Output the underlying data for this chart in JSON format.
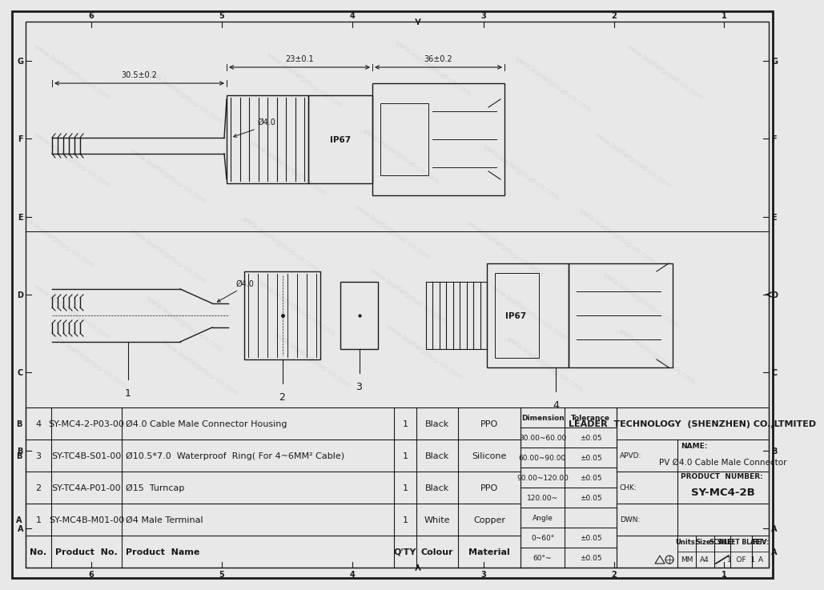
{
  "bg_color": "#e8e8e8",
  "paper_color": "#f5f5f5",
  "border_color": "#1a1a1a",
  "line_color": "#1a1a1a",
  "watermark_color": "#c8c8c8",
  "watermark_text": "www.leadergroup-cn.com",
  "bom_rows": [
    {
      "no": "4",
      "product_no": "SY-MC4-2-P03-00",
      "product_name": "Ø4.0 Cable Male Connector Housing",
      "qty": "1",
      "colour": "Black",
      "material": "PPO"
    },
    {
      "no": "3",
      "product_no": "SY-TC4B-S01-00",
      "product_name": "Ø10.5*7.0  Waterproof  Ring( For 4~6MM² Cable)",
      "qty": "1",
      "colour": "Black",
      "material": "Silicone"
    },
    {
      "no": "2",
      "product_no": "SY-TC4A-P01-00",
      "product_name": "Ø15  Turncap",
      "qty": "1",
      "colour": "Black",
      "material": "PPO"
    },
    {
      "no": "1",
      "product_no": "SY-MC4B-M01-00",
      "product_name": "Ø4 Male Terminal",
      "qty": "1",
      "colour": "White",
      "material": "Copper"
    },
    {
      "no": "No.",
      "product_no": "Product  No.",
      "product_name": "Product  Name",
      "qty": "Q'TY",
      "colour": "Colour",
      "material": "Material"
    }
  ],
  "tolerance_rows": [
    [
      "30.00~60.00",
      "±0.05"
    ],
    [
      "60.00~90.00",
      "±0.05"
    ],
    [
      "90.00~120.00",
      "±0.05"
    ],
    [
      "120.00~",
      "±0.05"
    ],
    [
      "Angle",
      ""
    ],
    [
      "0~60°",
      "±0.05"
    ],
    [
      "60°~",
      "±0.05"
    ]
  ],
  "title_block": {
    "company": "LEADER  TECHNOLOGY  (SHENZHEN) CO.,LTMITED",
    "apvd_label": "APVD:",
    "chk_label": "CHK:",
    "dwn_label": "DWN:",
    "name_label": "NAME:",
    "name_value": "PV Ø4.0 Cable Male Connector",
    "product_number_label": "PRODUCT  NUMBER:",
    "product_number_value": "SY-MC4-2B",
    "units_label": "Units:",
    "units_value": "MM",
    "size_label": "Size:",
    "size_value": "A4",
    "scale_label": "SCALE:",
    "sheet_label": "SHEET BLATT:",
    "sheet_value": "1  OF  1",
    "rev_label": "REV:",
    "rev_value": "A"
  }
}
